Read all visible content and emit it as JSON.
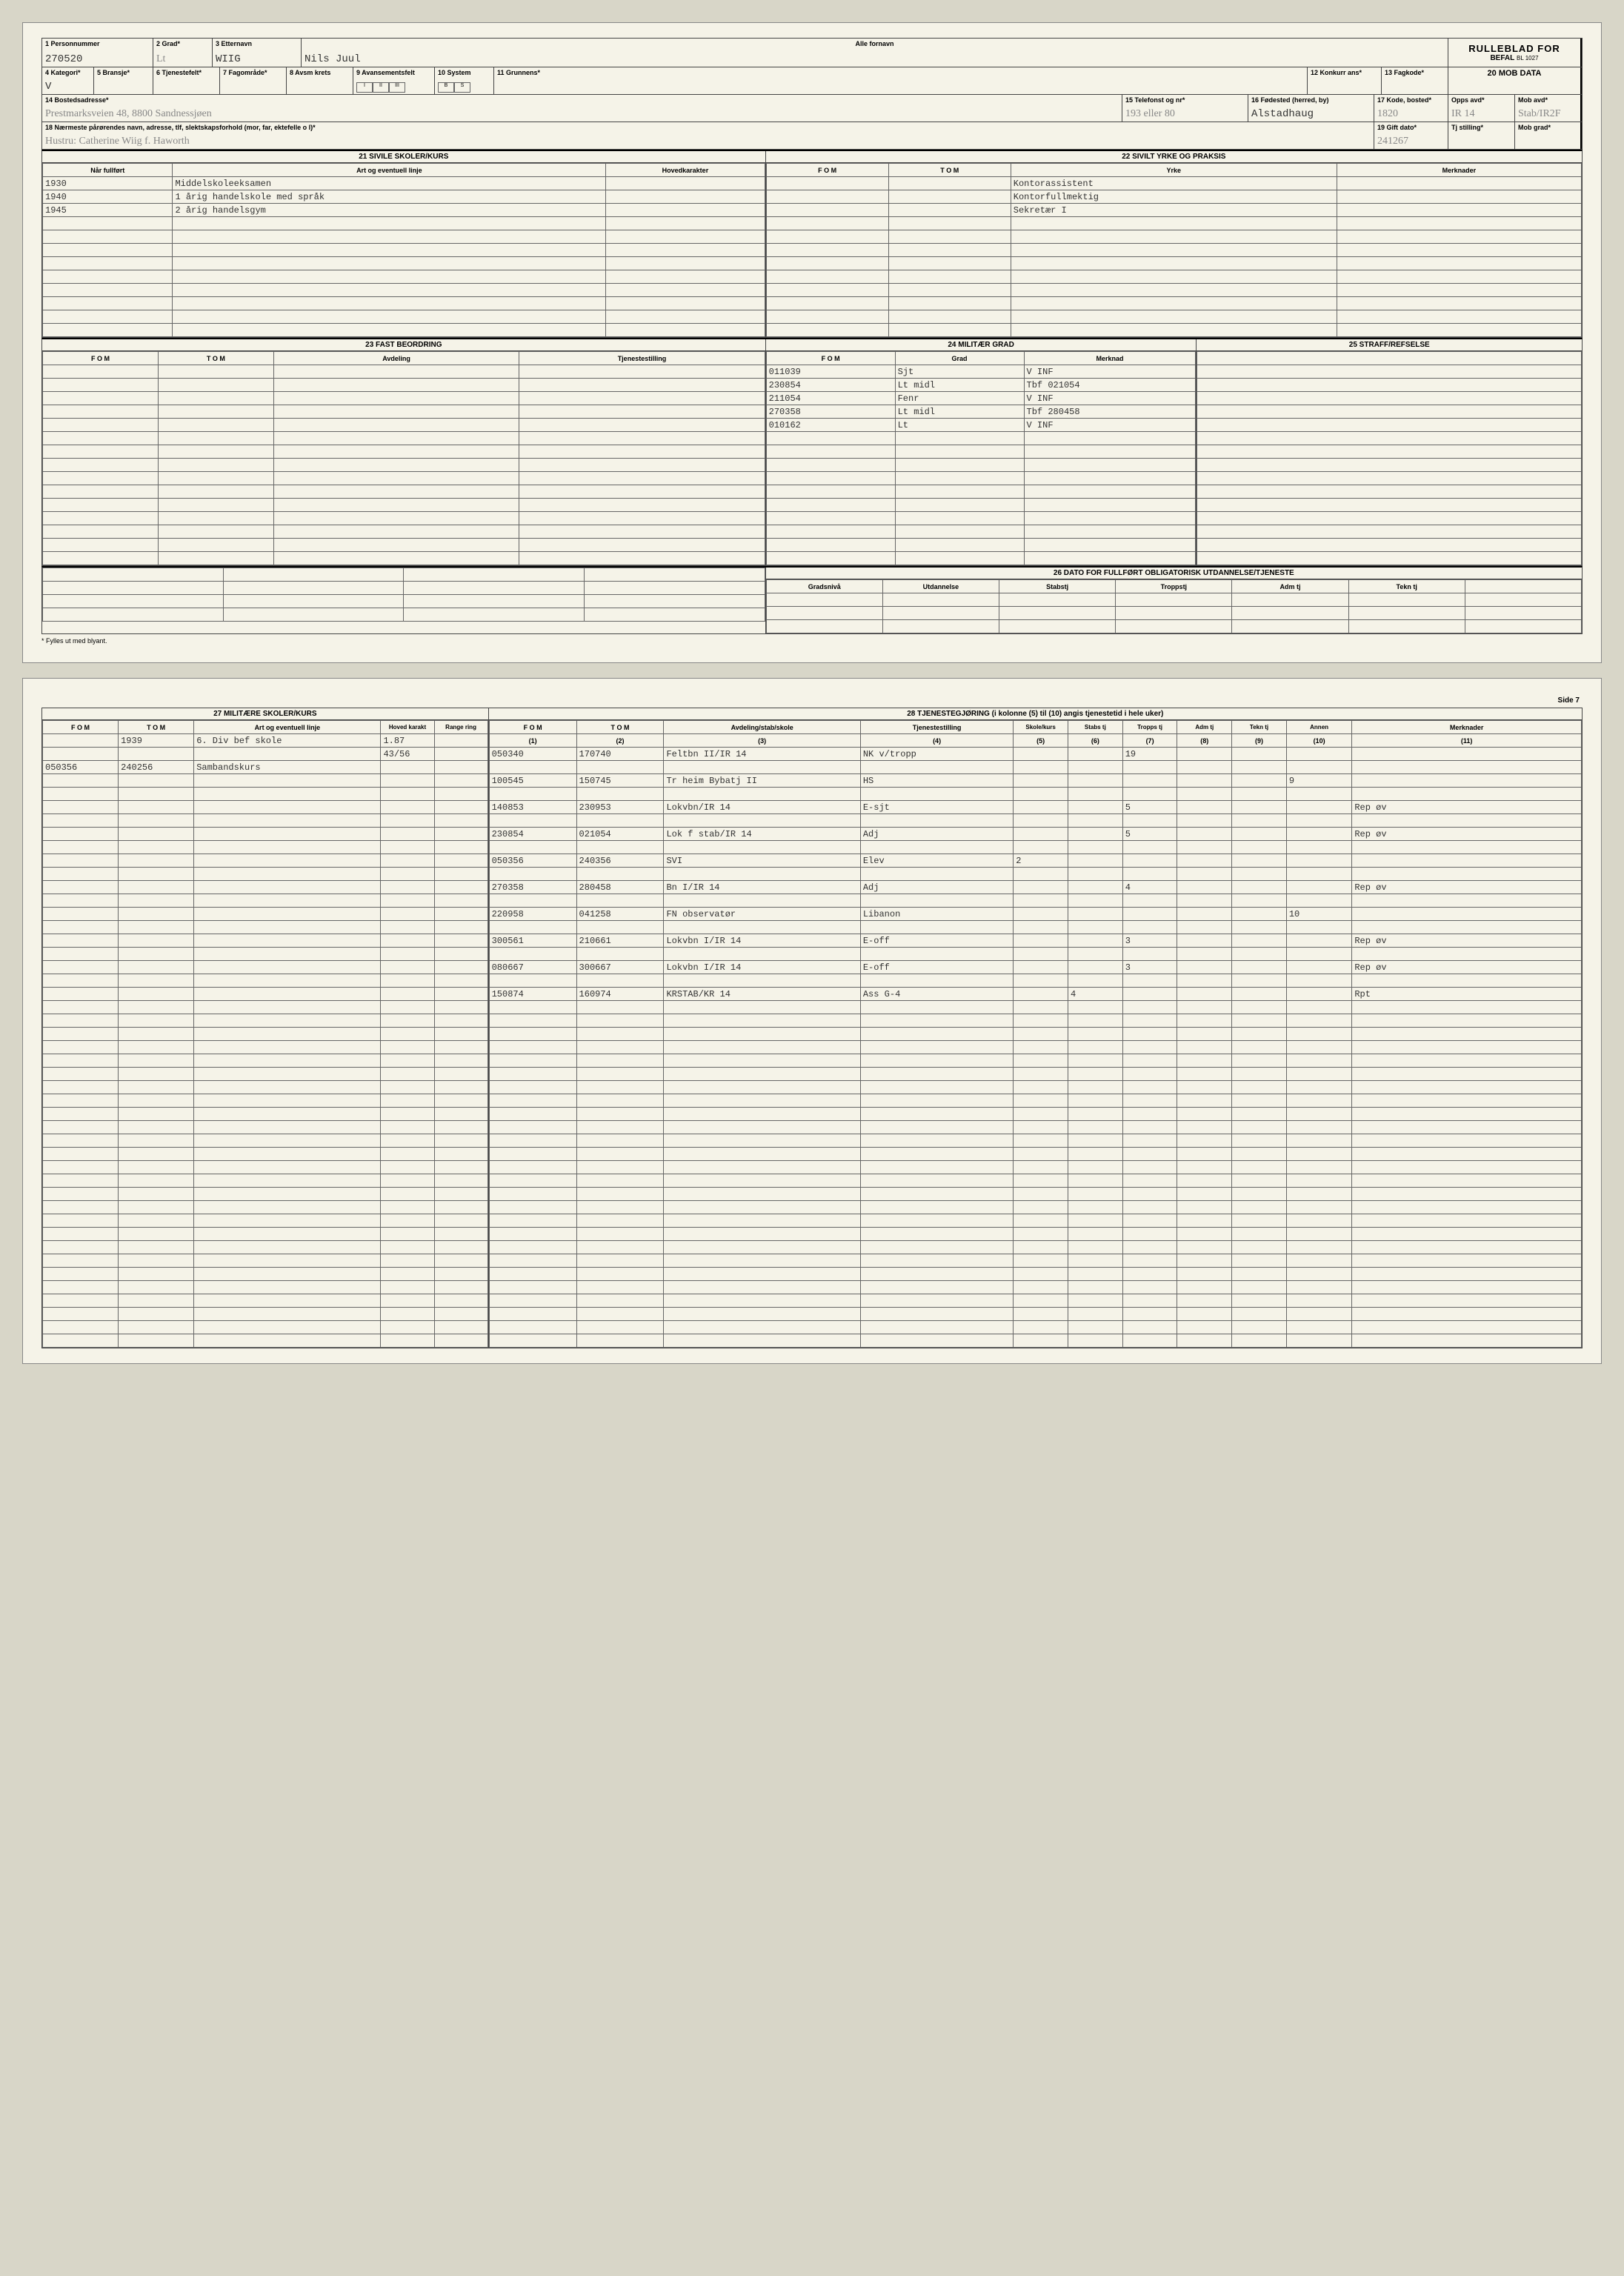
{
  "form": {
    "title_main": "RULLEBLAD FOR",
    "title_sub": "BEFAL",
    "form_no": "BL 1027",
    "mob_data": "20 MOB DATA"
  },
  "header": {
    "f1": {
      "label": "1 Personnummer",
      "value": "270520"
    },
    "f2": {
      "label": "2 Grad*",
      "value": "Lt"
    },
    "f3": {
      "label": "3 Etternavn",
      "value": "WIIG"
    },
    "f3b": {
      "label": "Alle fornavn",
      "value": "Nils Juul"
    },
    "f4": {
      "label": "4 Kategori*",
      "value": "V"
    },
    "f5": {
      "label": "5 Bransje*",
      "value": ""
    },
    "f6": {
      "label": "6 Tjenestefelt*",
      "value": ""
    },
    "f7": {
      "label": "7 Fagområde*",
      "value": ""
    },
    "f8": {
      "label": "8 Avsm krets",
      "value": ""
    },
    "f9": {
      "label": "9 Avansementsfelt",
      "value": ""
    },
    "f10": {
      "label": "10 System",
      "value": ""
    },
    "f11": {
      "label": "11 Grunnens*",
      "value": ""
    },
    "f12": {
      "label": "12 Konkurr ans*",
      "value": ""
    },
    "f13": {
      "label": "13 Fagkode*",
      "value": ""
    },
    "f14": {
      "label": "14 Bostedsadresse*",
      "value": "Prestmarksveien 48, 8800 Sandnessjøen"
    },
    "f15": {
      "label": "15 Telefonst og nr*",
      "value": "193 eller 80"
    },
    "f16": {
      "label": "16 Fødested (herred, by)",
      "value": "Alstadhaug"
    },
    "f17": {
      "label": "17 Kode, bosted*",
      "value": "1820"
    },
    "f18": {
      "label": "18 Nærmeste pårørendes navn, adresse, tlf, slektskapsforhold (mor, far, ektefelle o l)*",
      "value": "Hustru: Catherine Wiig f. Haworth"
    },
    "f19": {
      "label": "19 Gift dato*",
      "value": "241267"
    },
    "opps": {
      "label": "Opps avd*",
      "value": "IR 14"
    },
    "mobavd": {
      "label": "Mob avd*",
      "value": "Stab/IR2F"
    },
    "tjstill": {
      "label": "Tj stilling*",
      "value": ""
    },
    "mobgrad": {
      "label": "Mob grad*",
      "value": ""
    }
  },
  "sub_labels": {
    "i": "I",
    "ii": "II",
    "iii": "III",
    "b": "B",
    "s": "S"
  },
  "sec21": {
    "title": "21 SIVILE SKOLER/KURS",
    "cols": [
      "Når fullført",
      "Art og eventuell linje",
      "Hovedkarakter"
    ],
    "rows": [
      [
        "1930",
        "Middelskoleeksamen",
        ""
      ],
      [
        "1940",
        "1 årig handelskole med språk",
        ""
      ],
      [
        "1945",
        "2 årig handelsgym",
        ""
      ]
    ]
  },
  "sec22": {
    "title": "22 SIVILT YRKE OG PRAKSIS",
    "cols": [
      "F O M",
      "T O M",
      "Yrke",
      "Merknader"
    ],
    "rows": [
      [
        "",
        "",
        "Kontorassistent",
        ""
      ],
      [
        "",
        "",
        "Kontorfullmektig",
        ""
      ],
      [
        "",
        "",
        "Sekretær I",
        ""
      ]
    ]
  },
  "sec23": {
    "title": "23 FAST BEORDRING",
    "cols": [
      "F O M",
      "T O M",
      "Avdeling",
      "Tjenestestilling"
    ]
  },
  "sec24": {
    "title": "24 MILITÆR GRAD",
    "cols": [
      "F O M",
      "Grad",
      "Merknad"
    ],
    "rows": [
      [
        "011039",
        "Sjt",
        "V   INF"
      ],
      [
        "230854",
        "Lt midl",
        "Tbf 021054"
      ],
      [
        "211054",
        "Fenr",
        "V   INF"
      ],
      [
        "270358",
        "Lt midl",
        "Tbf 280458"
      ],
      [
        "010162",
        "Lt",
        "V   INF"
      ]
    ]
  },
  "sec25": {
    "title": "25 STRAFF/REFSELSE"
  },
  "sec26": {
    "title": "26 DATO FOR FULLFØRT OBLIGATORISK UTDANNELSE/TJENESTE",
    "cols": [
      "Gradsnivå",
      "Utdannelse",
      "Stabstj",
      "Troppstj",
      "Adm tj",
      "Tekn tj"
    ]
  },
  "footnote": "* Fylles ut med blyant.",
  "side": "Side 7",
  "sec27": {
    "title": "27 MILITÆRE SKOLER/KURS",
    "cols": [
      "F O M",
      "T O M",
      "Art og eventuell linje",
      "Hoved karakt",
      "Range ring"
    ],
    "rows": [
      [
        "",
        "1939",
        "6. Div bef skole",
        "1.87",
        ""
      ],
      [
        "",
        "",
        "",
        "43/56",
        ""
      ],
      [
        "050356",
        "240256",
        "Sambandskurs",
        "",
        ""
      ]
    ]
  },
  "sec28": {
    "title": "28 TJENESTEGJØRING  (i kolonne (5) til (10) angis tjenestetid i hele uker)",
    "cols": [
      "F O M",
      "T O M",
      "Avdeling/stab/skole",
      "Tjenestestilling",
      "Skole/kurs",
      "Stabs tj",
      "Tropps tj",
      "Adm tj",
      "Tekn tj",
      "Annen",
      "Merknader"
    ],
    "colnums": [
      "(1)",
      "(2)",
      "(3)",
      "(4)",
      "(5)",
      "(6)",
      "(7)",
      "(8)",
      "(9)",
      "(10)",
      "(11)"
    ],
    "rows": [
      [
        "050340",
        "170740",
        "Feltbn II/IR 14",
        "NK v/tropp",
        "",
        "",
        "19",
        "",
        "",
        "",
        ""
      ],
      [
        "",
        "",
        "",
        "",
        "",
        "",
        "",
        "",
        "",
        "",
        ""
      ],
      [
        "100545",
        "150745",
        "Tr heim Bybatj II",
        "HS",
        "",
        "",
        "",
        "",
        "",
        "9",
        ""
      ],
      [
        "",
        "",
        "",
        "",
        "",
        "",
        "",
        "",
        "",
        "",
        ""
      ],
      [
        "140853",
        "230953",
        "Lokvbn/IR 14",
        "E-sjt",
        "",
        "",
        "5",
        "",
        "",
        "",
        "Rep øv"
      ],
      [
        "",
        "",
        "",
        "",
        "",
        "",
        "",
        "",
        "",
        "",
        ""
      ],
      [
        "230854",
        "021054",
        "Lok f stab/IR 14",
        "Adj",
        "",
        "",
        "5",
        "",
        "",
        "",
        "Rep øv"
      ],
      [
        "",
        "",
        "",
        "",
        "",
        "",
        "",
        "",
        "",
        "",
        ""
      ],
      [
        "050356",
        "240356",
        "SVI",
        "Elev",
        "2",
        "",
        "",
        "",
        "",
        "",
        ""
      ],
      [
        "",
        "",
        "",
        "",
        "",
        "",
        "",
        "",
        "",
        "",
        ""
      ],
      [
        "270358",
        "280458",
        "Bn I/IR 14",
        "Adj",
        "",
        "",
        "4",
        "",
        "",
        "",
        "Rep øv"
      ],
      [
        "",
        "",
        "",
        "",
        "",
        "",
        "",
        "",
        "",
        "",
        ""
      ],
      [
        "220958",
        "041258",
        "FN observatør",
        "Libanon",
        "",
        "",
        "",
        "",
        "",
        "10",
        ""
      ],
      [
        "",
        "",
        "",
        "",
        "",
        "",
        "",
        "",
        "",
        "",
        ""
      ],
      [
        "300561",
        "210661",
        "Lokvbn I/IR 14",
        "E-off",
        "",
        "",
        "3",
        "",
        "",
        "",
        "Rep øv"
      ],
      [
        "",
        "",
        "",
        "",
        "",
        "",
        "",
        "",
        "",
        "",
        ""
      ],
      [
        "080667",
        "300667",
        "Lokvbn I/IR 14",
        "E-off",
        "",
        "",
        "3",
        "",
        "",
        "",
        "Rep øv"
      ],
      [
        "",
        "",
        "",
        "",
        "",
        "",
        "",
        "",
        "",
        "",
        ""
      ],
      [
        "150874",
        "160974",
        "KRSTAB/KR 14",
        "Ass G-4",
        "",
        "4",
        "",
        "",
        "",
        "",
        "Rpt"
      ]
    ]
  }
}
